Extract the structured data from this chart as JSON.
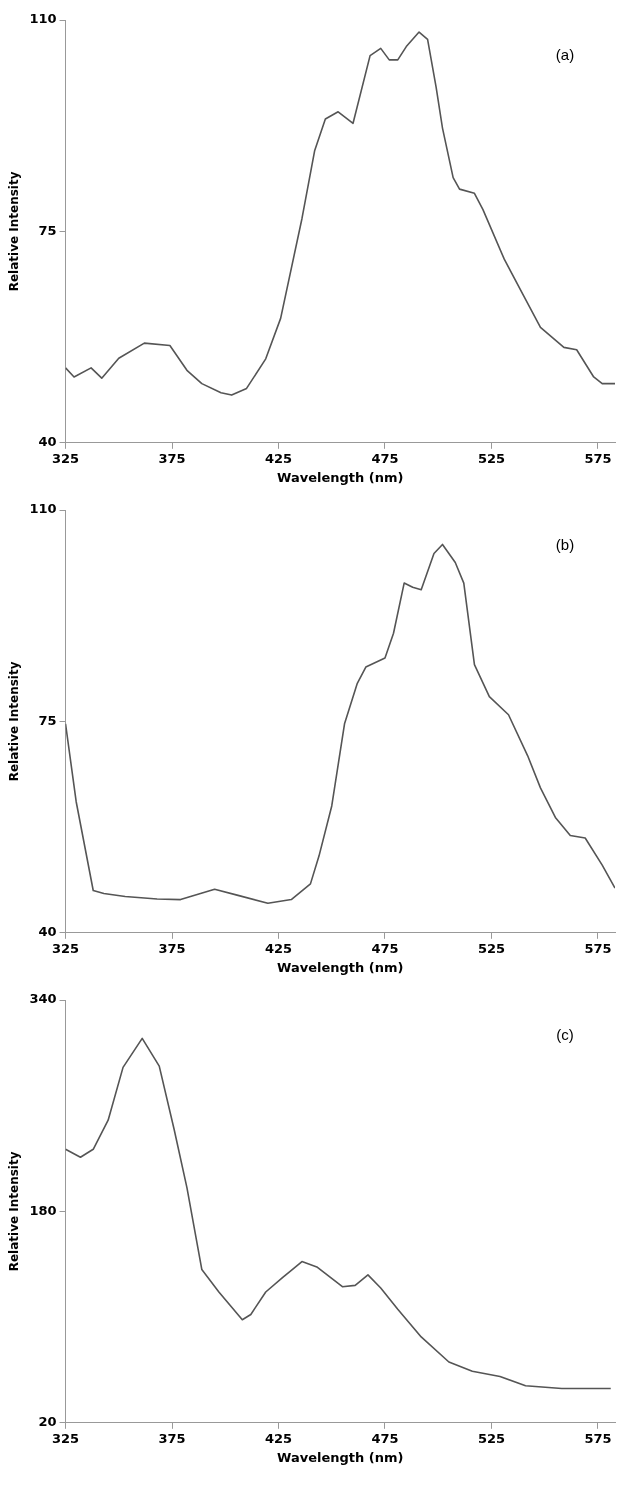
{
  "chart_data": [
    {
      "type": "line",
      "xlabel": "Wavelength (nm)",
      "ylabel": "Relative Intensity",
      "annotations": [
        "(a)"
      ],
      "grid": false,
      "xlim": [
        325,
        583
      ],
      "xticks": [
        325,
        375,
        425,
        475,
        525,
        575
      ],
      "ylim": [
        40,
        110
      ],
      "yticks": [
        40,
        75,
        110
      ],
      "series": [
        {
          "color": "#555555",
          "x": [
            325,
            329,
            337,
            342,
            350,
            362,
            374,
            382,
            389,
            398,
            403,
            410,
            419,
            426,
            436,
            442,
            447,
            453,
            460,
            468,
            473,
            477,
            481,
            485,
            491,
            495,
            499,
            502,
            507,
            510,
            517,
            521,
            531,
            540,
            548,
            559,
            565,
            573,
            577,
            583
          ],
          "values": [
            52.4,
            50.9,
            52.4,
            50.7,
            54.0,
            56.5,
            56.1,
            52.0,
            49.8,
            48.3,
            47.9,
            49.0,
            53.9,
            60.6,
            77.1,
            88.4,
            93.6,
            94.8,
            92.9,
            104.1,
            105.3,
            103.4,
            103.4,
            105.6,
            108.0,
            106.8,
            98.9,
            92.1,
            83.9,
            82.0,
            81.3,
            78.6,
            70.4,
            64.4,
            59.1,
            55.8,
            55.4,
            50.9,
            49.8,
            49.8
          ]
        }
      ]
    },
    {
      "type": "line",
      "xlabel": "Wavelength (nm)",
      "ylabel": "Relative Intensity",
      "annotations": [
        "(b)"
      ],
      "grid": false,
      "xlim": [
        325,
        583
      ],
      "xticks": [
        325,
        375,
        425,
        475,
        525,
        575
      ],
      "ylim": [
        40,
        110
      ],
      "yticks": [
        40,
        75,
        110
      ],
      "series": [
        {
          "color": "#555555",
          "x": [
            325,
            330,
            338,
            343,
            353,
            368,
            379,
            395,
            406,
            420,
            431,
            440,
            444,
            450,
            456,
            462,
            466,
            475,
            479,
            484,
            488,
            492,
            498,
            502,
            508,
            512,
            517,
            524,
            533,
            542,
            548,
            555,
            562,
            569,
            577,
            583
          ],
          "values": [
            74.6,
            61.7,
            47.0,
            46.5,
            46.0,
            45.6,
            45.5,
            47.2,
            46.2,
            44.9,
            45.5,
            48.1,
            52.7,
            61.0,
            74.6,
            81.3,
            84.0,
            85.5,
            89.6,
            97.9,
            97.2,
            96.8,
            102.8,
            104.3,
            101.3,
            97.9,
            84.4,
            79.1,
            76.1,
            69.3,
            64.0,
            59.1,
            56.1,
            55.7,
            51.2,
            47.4
          ]
        }
      ]
    },
    {
      "type": "line",
      "xlabel": "Wavelength (nm)",
      "ylabel": "Relative Intensity",
      "annotations": [
        "(c)"
      ],
      "grid": false,
      "xlim": [
        325,
        583
      ],
      "xticks": [
        325,
        375,
        425,
        475,
        525,
        575
      ],
      "ylim": [
        20,
        340
      ],
      "yticks": [
        20,
        180,
        340
      ],
      "series": [
        {
          "color": "#555555",
          "x": [
            325,
            332,
            338,
            345,
            352,
            361,
            369,
            376,
            382,
            389,
            397,
            408,
            412,
            419,
            427,
            436,
            443,
            455,
            461,
            467,
            473,
            481,
            492,
            505,
            516,
            529,
            541,
            558,
            581
          ],
          "values": [
            227,
            221,
            227,
            249,
            289,
            311,
            290,
            242,
            198,
            136,
            119,
            98,
            102,
            119,
            130,
            142,
            138,
            123,
            124,
            132,
            122,
            106,
            85,
            66,
            59,
            55,
            48,
            46,
            46
          ]
        }
      ]
    }
  ]
}
